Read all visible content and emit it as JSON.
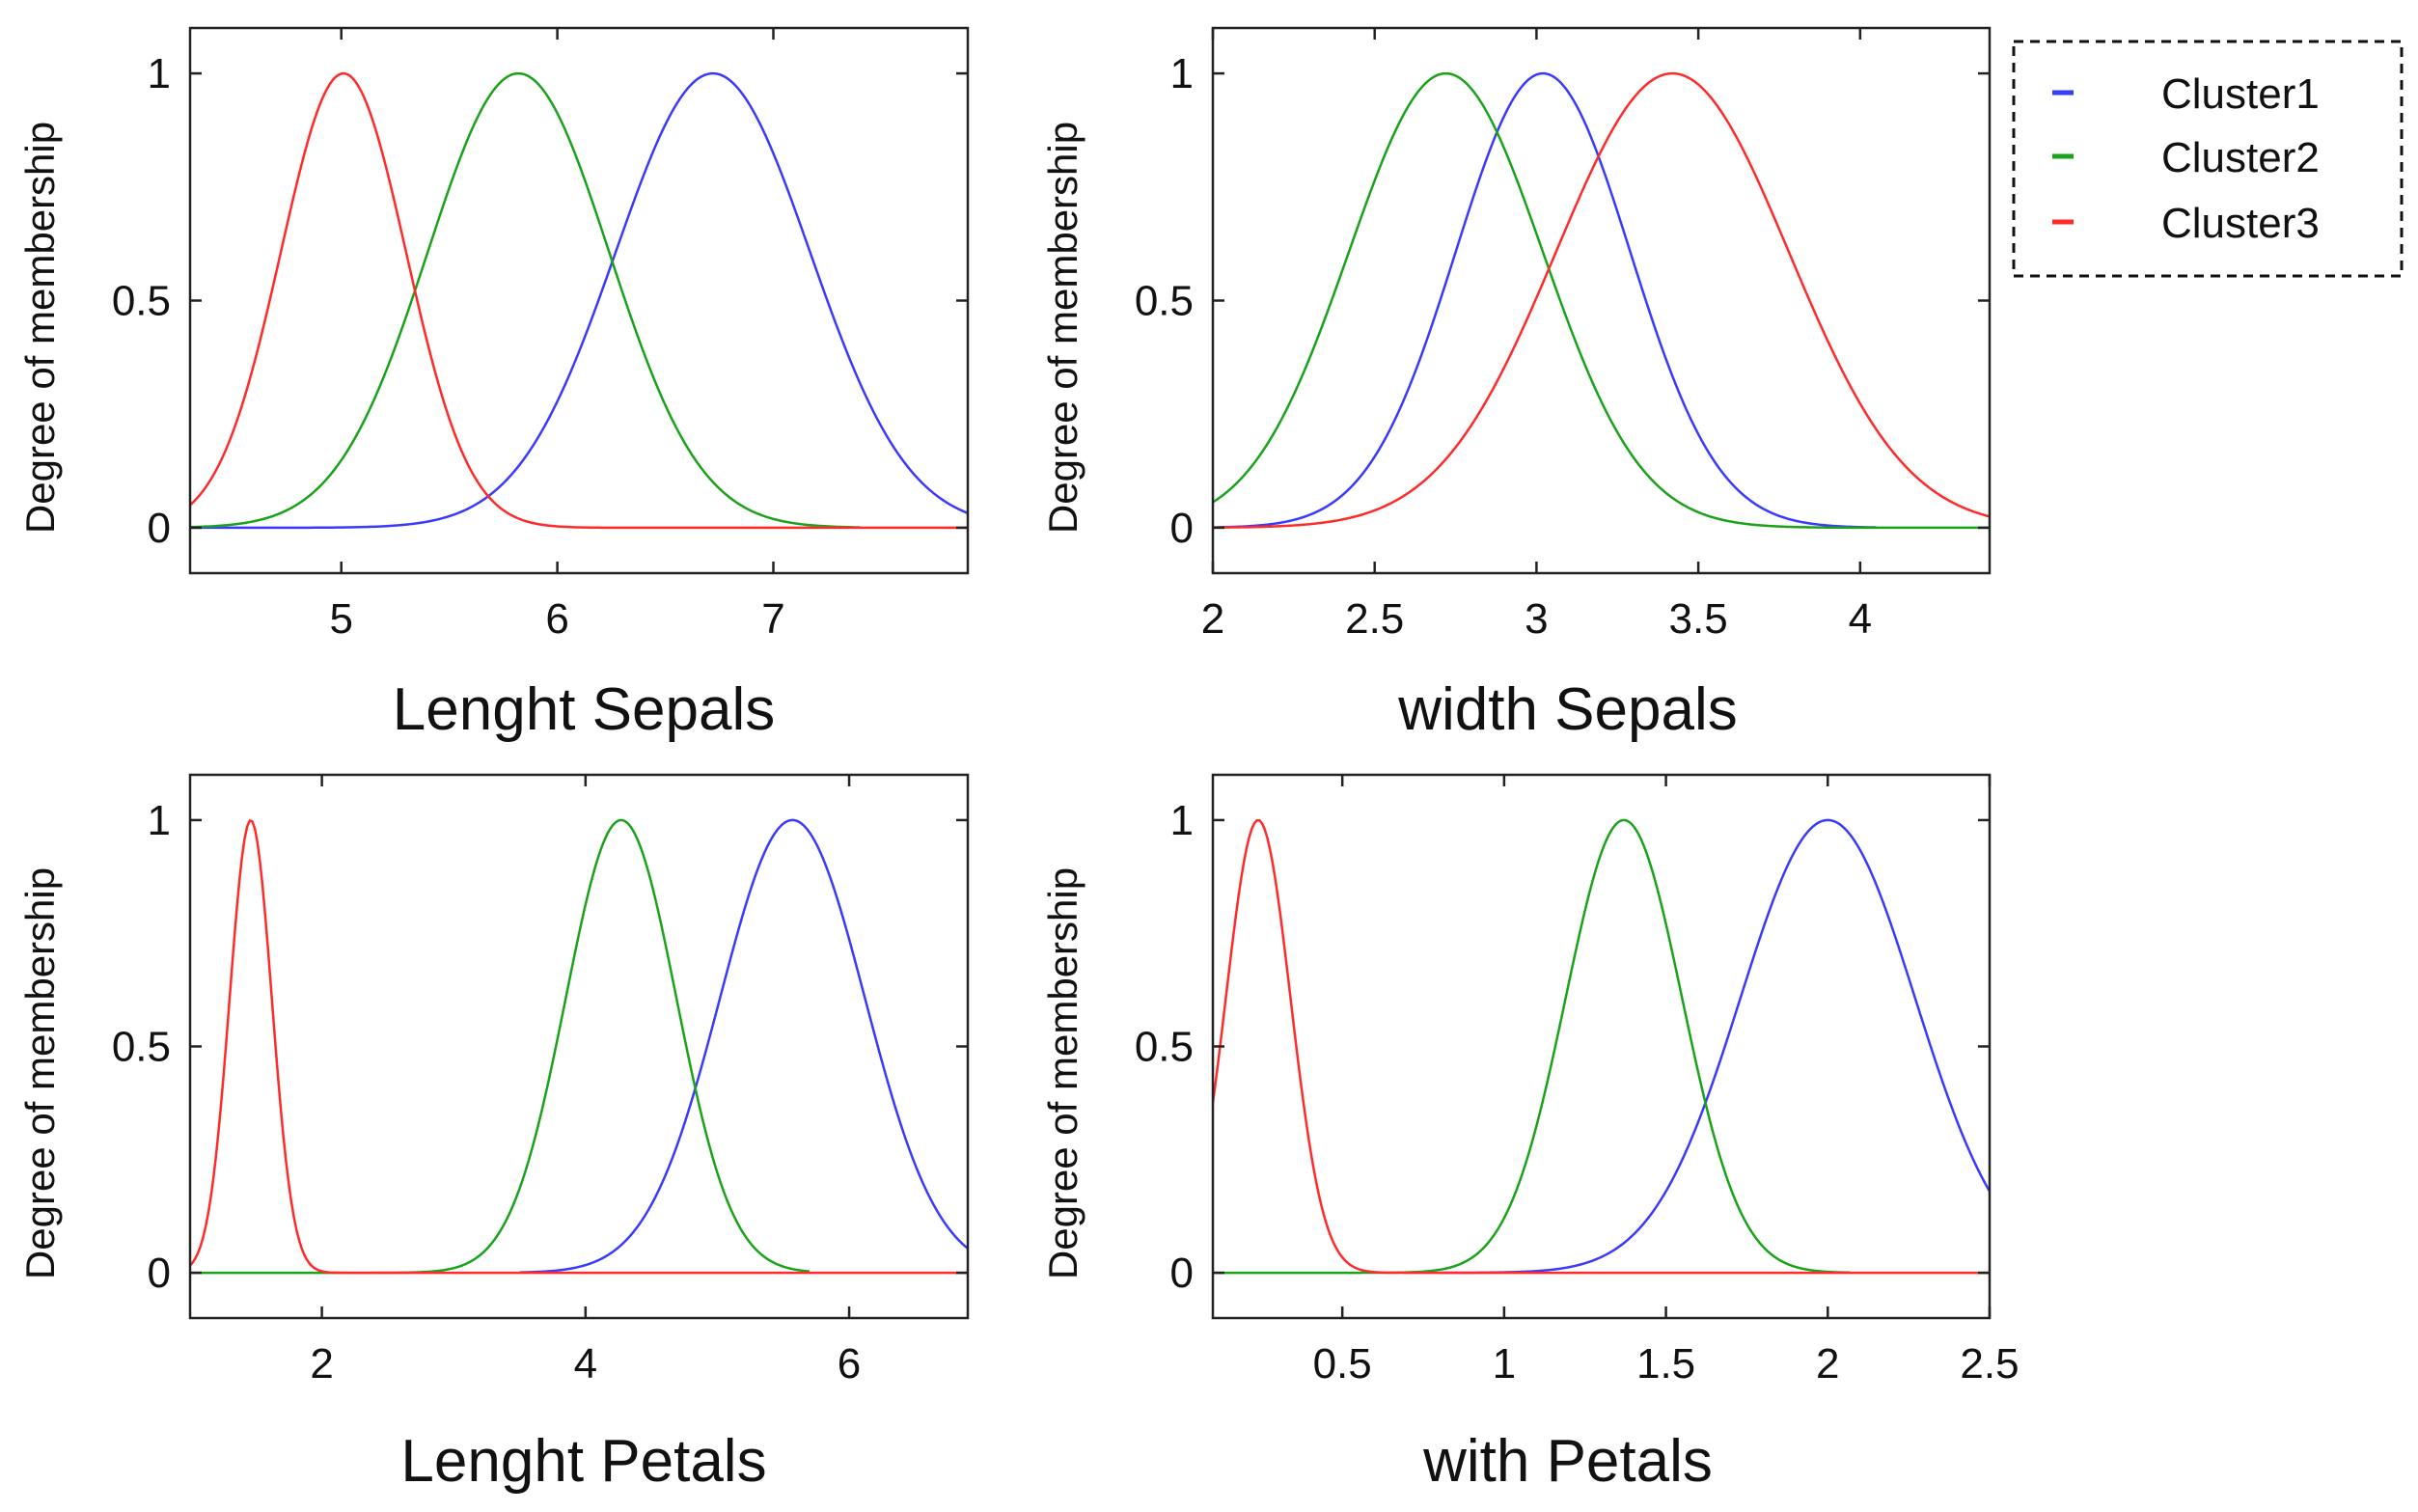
{
  "chart_data": [
    {
      "type": "line",
      "id": "sepal-length",
      "xlabel": "Lenght Sepals",
      "ylabel": "Degree of membership",
      "xlim": [
        4.3,
        7.9
      ],
      "ylim": [
        -0.1,
        1.1
      ],
      "xticks": [
        5,
        6,
        7
      ],
      "yticks": [
        0,
        0.5,
        1
      ],
      "series": [
        {
          "name": "Cluster1",
          "color": "#3a3aff",
          "center": 6.72,
          "sigma": 0.45,
          "cut_left": 4.3,
          "cut_right": 7.9
        },
        {
          "name": "Cluster2",
          "color": "#1aa31a",
          "center": 5.82,
          "sigma": 0.42,
          "cut_left": 4.3,
          "cut_right": 7.4
        },
        {
          "name": "Cluster3",
          "color": "#ff2a2a",
          "center": 5.01,
          "sigma": 0.29,
          "cut_left": 4.3,
          "cut_right": 7.9
        }
      ]
    },
    {
      "type": "line",
      "id": "sepal-width",
      "xlabel": "width Sepals",
      "ylabel": "Degree of membership",
      "xlim": [
        2.0,
        4.4
      ],
      "ylim": [
        -0.1,
        1.1
      ],
      "xticks": [
        2,
        2.5,
        3,
        3.5,
        4
      ],
      "yticks": [
        0,
        0.5,
        1
      ],
      "series": [
        {
          "name": "Cluster1",
          "color": "#3a3aff",
          "center": 3.02,
          "sigma": 0.27,
          "cut_left": 2.0,
          "cut_right": 4.05
        },
        {
          "name": "Cluster2",
          "color": "#1aa31a",
          "center": 2.72,
          "sigma": 0.3,
          "cut_left": 2.0,
          "cut_right": 4.4
        },
        {
          "name": "Cluster3",
          "color": "#ff2a2a",
          "center": 3.42,
          "sigma": 0.36,
          "cut_left": 2.0,
          "cut_right": 4.4
        }
      ]
    },
    {
      "type": "line",
      "id": "petal-length",
      "xlabel": "Lenght Petals",
      "ylabel": "Degree of membership",
      "xlim": [
        1.0,
        6.9
      ],
      "ylim": [
        -0.1,
        1.1
      ],
      "xticks": [
        2,
        4,
        6
      ],
      "yticks": [
        0,
        0.5,
        1
      ],
      "series": [
        {
          "name": "Cluster1",
          "color": "#3a3aff",
          "center": 5.57,
          "sigma": 0.55,
          "cut_left": 3.5,
          "cut_right": 6.9
        },
        {
          "name": "Cluster2",
          "color": "#1aa31a",
          "center": 4.27,
          "sigma": 0.42,
          "cut_left": 1.0,
          "cut_right": 5.7
        },
        {
          "name": "Cluster3",
          "color": "#ff2a2a",
          "center": 1.46,
          "sigma": 0.16,
          "cut_left": 1.0,
          "cut_right": 6.9
        }
      ]
    },
    {
      "type": "line",
      "id": "petal-width",
      "xlabel": "with Petals",
      "ylabel": "Degree of membership",
      "xlim": [
        0.1,
        2.5
      ],
      "ylim": [
        -0.1,
        1.1
      ],
      "xticks": [
        0.5,
        1,
        1.5,
        2,
        2.5
      ],
      "yticks": [
        0,
        0.5,
        1
      ],
      "series": [
        {
          "name": "Cluster1",
          "color": "#3a3aff",
          "center": 2.0,
          "sigma": 0.27,
          "cut_left": 0.8,
          "cut_right": 2.5
        },
        {
          "name": "Cluster2",
          "color": "#1aa31a",
          "center": 1.37,
          "sigma": 0.18,
          "cut_left": 0.1,
          "cut_right": 2.07
        },
        {
          "name": "Cluster3",
          "color": "#ff2a2a",
          "center": 0.24,
          "sigma": 0.1,
          "cut_left": 0.1,
          "cut_right": 2.5
        }
      ]
    }
  ],
  "legend": {
    "items": [
      {
        "label": "Cluster1",
        "color": "#3a3aff"
      },
      {
        "label": "Cluster2",
        "color": "#1aa31a"
      },
      {
        "label": "Cluster3",
        "color": "#ff2a2a"
      }
    ]
  }
}
